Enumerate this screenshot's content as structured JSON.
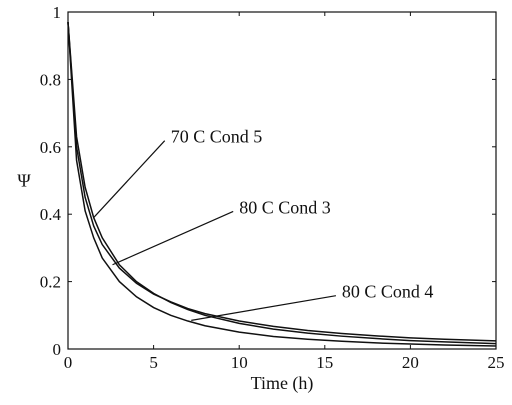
{
  "chart_data": {
    "type": "line",
    "xlabel": "Time (h)",
    "ylabel": "Ψ",
    "xlim": [
      0,
      25
    ],
    "ylim": [
      0,
      1
    ],
    "xticks": [
      "0",
      "5",
      "10",
      "15",
      "20",
      "25"
    ],
    "yticks": [
      "0",
      "0.2",
      "0.4",
      "0.6",
      "0.8",
      "1"
    ],
    "grid": false,
    "series": [
      {
        "name": "70 C Cond 5",
        "x": [
          0,
          0.5,
          1,
          1.5,
          2,
          3,
          4,
          5,
          6,
          7,
          8,
          10,
          12,
          14,
          16,
          18,
          20,
          22,
          25
        ],
        "y": [
          0.97,
          0.63,
          0.48,
          0.39,
          0.33,
          0.25,
          0.2,
          0.165,
          0.138,
          0.117,
          0.1,
          0.076,
          0.059,
          0.047,
          0.038,
          0.031,
          0.025,
          0.021,
          0.016
        ]
      },
      {
        "name": "80 C Cond 3",
        "x": [
          0,
          0.5,
          1,
          1.5,
          2,
          3,
          4,
          5,
          6,
          7,
          8,
          10,
          12,
          14,
          16,
          18,
          20,
          22,
          25
        ],
        "y": [
          0.97,
          0.6,
          0.45,
          0.365,
          0.31,
          0.24,
          0.195,
          0.163,
          0.14,
          0.12,
          0.105,
          0.083,
          0.067,
          0.055,
          0.046,
          0.039,
          0.033,
          0.029,
          0.024
        ]
      },
      {
        "name": "80 C Cond 4",
        "x": [
          0,
          0.5,
          1,
          1.5,
          2,
          3,
          4,
          5,
          6,
          7,
          8,
          10,
          12,
          14,
          16,
          18,
          20,
          22,
          25
        ],
        "y": [
          0.97,
          0.56,
          0.41,
          0.33,
          0.27,
          0.2,
          0.155,
          0.123,
          0.1,
          0.083,
          0.069,
          0.05,
          0.037,
          0.029,
          0.023,
          0.018,
          0.015,
          0.012,
          0.009
        ]
      }
    ],
    "annotations": [
      {
        "text": "70 C Cond 5",
        "series": "70 C Cond 5",
        "text_at": [
          6.0,
          0.63
        ],
        "points_to": [
          1.5,
          0.39
        ]
      },
      {
        "text": "80 C Cond 3",
        "series": "80 C Cond 3",
        "text_at": [
          10.0,
          0.42
        ],
        "points_to": [
          2.6,
          0.25
        ]
      },
      {
        "text": "80 C Cond 4",
        "series": "80 C Cond 4",
        "text_at": [
          16.0,
          0.17
        ],
        "points_to": [
          7.2,
          0.085
        ]
      }
    ]
  }
}
